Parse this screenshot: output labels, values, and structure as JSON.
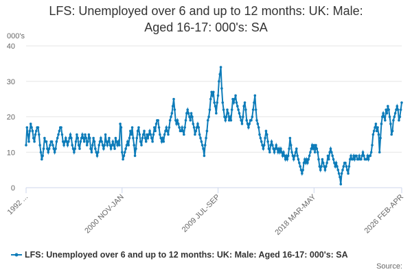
{
  "chart_data": {
    "type": "line",
    "title": "LFS: Unemployed over 6 and up to 12 months: UK: Male: Aged 16-17: 000's: SA",
    "y_unit": "000's",
    "source_label": "Source:",
    "categories": [
      "1992 ...",
      null,
      null,
      null,
      null,
      null,
      null,
      null,
      null,
      null,
      null,
      null,
      null,
      null,
      null,
      null,
      null,
      null,
      null,
      null,
      null,
      null,
      null,
      null,
      null,
      null,
      null,
      null,
      null,
      null,
      null,
      null,
      null,
      null,
      null,
      null,
      null,
      null,
      null,
      null,
      null,
      null,
      null,
      null,
      null,
      null,
      null,
      null,
      null,
      null,
      null,
      null,
      null,
      null,
      null,
      null,
      null,
      null,
      null,
      null,
      null,
      null,
      null,
      null,
      null,
      null,
      null,
      null,
      null,
      null,
      null,
      null,
      null,
      null,
      null,
      null,
      null,
      null,
      null,
      null,
      null,
      null,
      null,
      null,
      null,
      null,
      null,
      null,
      null,
      null,
      null,
      null,
      null,
      null,
      null,
      null,
      null,
      null,
      null,
      null,
      null,
      null,
      null,
      null,
      "2000 NOV-JAN",
      null,
      null,
      null,
      null,
      null,
      null,
      null,
      null,
      null,
      null,
      null,
      null,
      null,
      null,
      null,
      null,
      null,
      null,
      null,
      null,
      null,
      null,
      null,
      null,
      null,
      null,
      null,
      null,
      null,
      null,
      null,
      null,
      null,
      null,
      null,
      null,
      null,
      null,
      null,
      null,
      null,
      null,
      null,
      null,
      null,
      null,
      null,
      null,
      null,
      null,
      null,
      null,
      null,
      null,
      null,
      null,
      null,
      null,
      null,
      null,
      null,
      null,
      null,
      null,
      null,
      null,
      null,
      null,
      null,
      null,
      null,
      null,
      null,
      null,
      null,
      null,
      null,
      null,
      null,
      null,
      null,
      null,
      null,
      null,
      null,
      null,
      null,
      null,
      null,
      null,
      null,
      null,
      null,
      null,
      null,
      null,
      null,
      null,
      null,
      null,
      null,
      null,
      null,
      "2009 JUL-SEP",
      null,
      null,
      null,
      null,
      null,
      null,
      null,
      null,
      null,
      null,
      null,
      null,
      null,
      null,
      null,
      null,
      null,
      null,
      null,
      null,
      null,
      null,
      null,
      null,
      null,
      null,
      null,
      null,
      null,
      null,
      null,
      null,
      null,
      null,
      null,
      null,
      null,
      null,
      null,
      null,
      null,
      null,
      null,
      null,
      null,
      null,
      null,
      null,
      null,
      null,
      null,
      null,
      null,
      null,
      null,
      null,
      null,
      null,
      null,
      null,
      null,
      null,
      null,
      null,
      null,
      null,
      null,
      null,
      null,
      null,
      null,
      null,
      null,
      null,
      null,
      null,
      null,
      null,
      null,
      null,
      null,
      null,
      null,
      null,
      null,
      null,
      null,
      null,
      null,
      null,
      null,
      null,
      null,
      null,
      null,
      null,
      null,
      null,
      null,
      null,
      null,
      null,
      null,
      "2018 MAR-MAY",
      null,
      null,
      null,
      null,
      null,
      null,
      null,
      null,
      null,
      null,
      null,
      null,
      null,
      null,
      null,
      null,
      null,
      null,
      null,
      null,
      null,
      null,
      null,
      null,
      null,
      null,
      null,
      null,
      null,
      null,
      null,
      null,
      null,
      null,
      null,
      null,
      null,
      null,
      null,
      null,
      null,
      null,
      null,
      null,
      null,
      null,
      null,
      null,
      null,
      null,
      null,
      null,
      null,
      null,
      null,
      null,
      null,
      null,
      null,
      null,
      null,
      null,
      null,
      null,
      null,
      null,
      null,
      null,
      null,
      null,
      null,
      null,
      null,
      null,
      null,
      null,
      null,
      null,
      null,
      null,
      null,
      null,
      null,
      null,
      null,
      null,
      null,
      null,
      null,
      null,
      null,
      null,
      null,
      null,
      "2026 FEB-APR"
    ],
    "series": [
      {
        "name": "LFS: Unemployed over 6 and up to 12 months: UK: Male: Aged 16-17: 000's: SA",
        "color": "#0e7cb9",
        "values": [
          12,
          17,
          15,
          13,
          16,
          18,
          17,
          16,
          14,
          13,
          15,
          16,
          17,
          17,
          15,
          12,
          10,
          8,
          9,
          11,
          14,
          13,
          13,
          11,
          10,
          11,
          12,
          13,
          13,
          12,
          11,
          10,
          11,
          13,
          14,
          15,
          16,
          17,
          17,
          15,
          13,
          12,
          13,
          14,
          13,
          12,
          13,
          14,
          15,
          14,
          12,
          11,
          10,
          11,
          13,
          15,
          14,
          12,
          11,
          13,
          14,
          15,
          14,
          13,
          15,
          14,
          12,
          13,
          15,
          14,
          11,
          10,
          12,
          14,
          13,
          11,
          10,
          9,
          10,
          12,
          13,
          14,
          13,
          12,
          11,
          12,
          15,
          13,
          12,
          13,
          14,
          12,
          11,
          12,
          13,
          12,
          11,
          14,
          13,
          12,
          13,
          12,
          18,
          17,
          10,
          8,
          9,
          10,
          11,
          12,
          13,
          12,
          14,
          16,
          15,
          17,
          14,
          12,
          9,
          11,
          14,
          16,
          17,
          15,
          13,
          12,
          14,
          15,
          16,
          14,
          13,
          15,
          14,
          15,
          16,
          15,
          14,
          13,
          15,
          17,
          16,
          18,
          19,
          19,
          17,
          15,
          14,
          13,
          14,
          13,
          15,
          16,
          17,
          16,
          15,
          17,
          19,
          20,
          21,
          23,
          25,
          22,
          19,
          18,
          19,
          18,
          17,
          16,
          16,
          17,
          16,
          15,
          17,
          19,
          21,
          22,
          21,
          20,
          19,
          21,
          20,
          18,
          17,
          15,
          16,
          17,
          18,
          17,
          15,
          14,
          13,
          12,
          11,
          9,
          12,
          14,
          16,
          19,
          20,
          22,
          25,
          27,
          26,
          27,
          24,
          23,
          21,
          24,
          26,
          30,
          32,
          34,
          28,
          24,
          22,
          20,
          19,
          20,
          22,
          21,
          19,
          20,
          19,
          22,
          25,
          24,
          25,
          26,
          24,
          23,
          22,
          21,
          20,
          19,
          18,
          20,
          23,
          24,
          22,
          19,
          18,
          17,
          18,
          19,
          19,
          20,
          22,
          24,
          26,
          22,
          19,
          18,
          17,
          15,
          14,
          13,
          12,
          11,
          12,
          14,
          16,
          15,
          13,
          11,
          10,
          12,
          13,
          12,
          11,
          10,
          11,
          12,
          11,
          10,
          11,
          10,
          11,
          10,
          9,
          10,
          9,
          8,
          9,
          8,
          9,
          11,
          14,
          12,
          10,
          9,
          8,
          9,
          10,
          11,
          9,
          8,
          7,
          6,
          5,
          4,
          5,
          7,
          8,
          7,
          8,
          7,
          8,
          9,
          10,
          11,
          12,
          11,
          12,
          10,
          12,
          11,
          10,
          8,
          6,
          5,
          6,
          8,
          7,
          6,
          5,
          6,
          7,
          9,
          8,
          10,
          11,
          10,
          9,
          8,
          7,
          6,
          7,
          6,
          5,
          4,
          3,
          1,
          4,
          5,
          6,
          7,
          7,
          6,
          5,
          4,
          6,
          8,
          9,
          8,
          8,
          9,
          8,
          9,
          9,
          8,
          8,
          9,
          8,
          8,
          9,
          10,
          9,
          8,
          8,
          8,
          9,
          8,
          9,
          9,
          10,
          12,
          15,
          16,
          17,
          18,
          16,
          17,
          15,
          10,
          14,
          18,
          20,
          21,
          20,
          19,
          22,
          21,
          23,
          22,
          20,
          18,
          15,
          16,
          19,
          20,
          21,
          22,
          23,
          22,
          19,
          20,
          22,
          24
        ]
      }
    ],
    "ylim": [
      0,
      40
    ],
    "yticks": [
      0,
      10,
      20,
      30,
      40
    ],
    "grid": true
  }
}
